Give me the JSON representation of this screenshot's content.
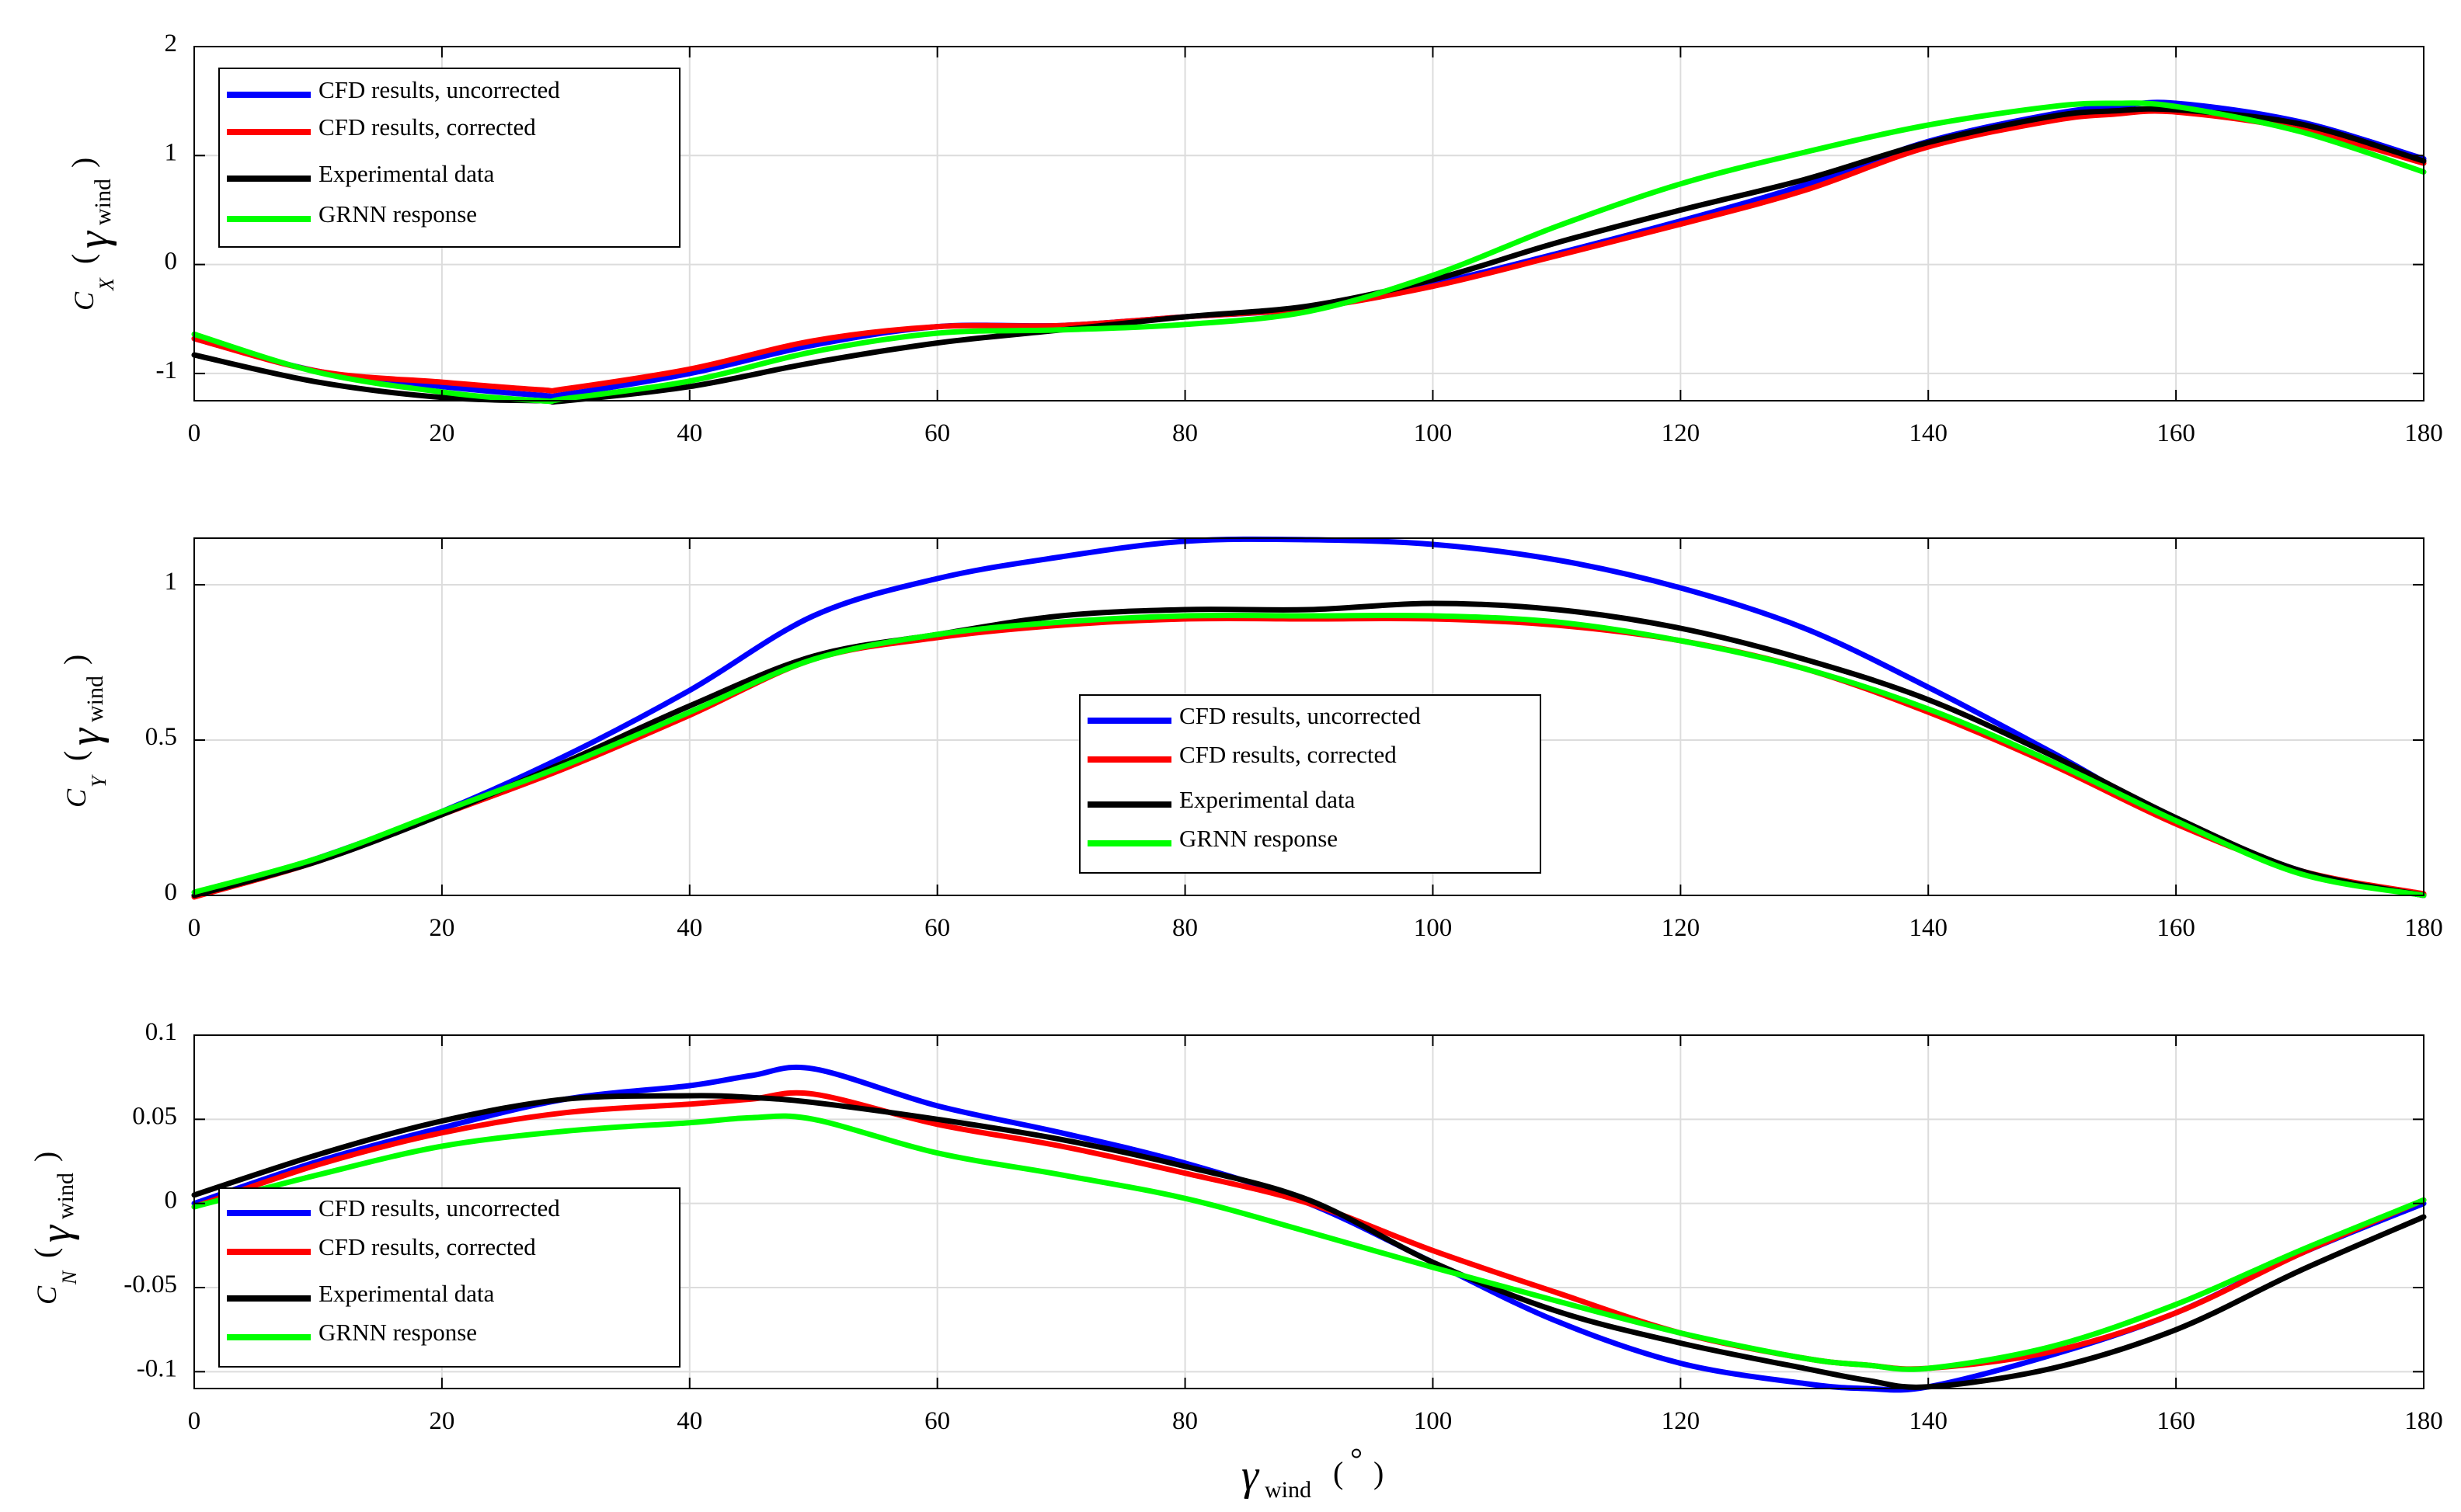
{
  "colors": {
    "uncorrected": "#0000ff",
    "corrected": "#ff0000",
    "experimental": "#000000",
    "grnn": "#00ff00",
    "grid": "#dcdcdc",
    "axis": "#000000"
  },
  "legend_labels": {
    "uncorrected": "CFD results, uncorrected",
    "corrected": "CFD results, corrected",
    "experimental": "Experimental data",
    "grnn": "GRNN response"
  },
  "x_axis": {
    "symbol": "γ",
    "subscript": "wind",
    "unit_open": "(",
    "unit_degree": "°",
    "unit_close": ")"
  },
  "chart_data": [
    {
      "type": "line",
      "ylabel": {
        "symbol": "C",
        "subscript": "X",
        "open": "(",
        "gamma": "γ",
        "gamma_sub": "wind",
        "close": ")"
      },
      "xlim": [
        0,
        180
      ],
      "ylim": [
        -1.25,
        2
      ],
      "xticks": [
        "0",
        "20",
        "40",
        "60",
        "80",
        "100",
        "120",
        "140",
        "160",
        "180"
      ],
      "yticks": [
        {
          "value": -1,
          "label": "-1"
        },
        {
          "value": 0,
          "label": "0"
        },
        {
          "value": 1,
          "label": "1"
        },
        {
          "value": 2,
          "label": "2"
        }
      ],
      "grid": true,
      "legend_position": "top-left",
      "x": [
        0,
        10,
        20,
        28,
        30,
        40,
        50,
        60,
        70,
        80,
        90,
        100,
        110,
        120,
        130,
        140,
        150,
        155,
        160,
        170,
        180
      ],
      "series": [
        {
          "key": "uncorrected",
          "name": "CFD results, uncorrected",
          "values": [
            -0.68,
            -0.98,
            -1.12,
            -1.2,
            -1.19,
            -1.0,
            -0.74,
            -0.57,
            -0.56,
            -0.48,
            -0.4,
            -0.18,
            0.1,
            0.4,
            0.73,
            1.13,
            1.38,
            1.45,
            1.48,
            1.31,
            0.97
          ]
        },
        {
          "key": "corrected",
          "name": "CFD results, corrected",
          "values": [
            -0.68,
            -0.98,
            -1.08,
            -1.15,
            -1.14,
            -0.96,
            -0.7,
            -0.57,
            -0.56,
            -0.48,
            -0.4,
            -0.2,
            0.08,
            0.37,
            0.68,
            1.08,
            1.32,
            1.38,
            1.4,
            1.24,
            0.93
          ]
        },
        {
          "key": "experimental",
          "name": "Experimental data",
          "values": [
            -0.83,
            -1.08,
            -1.22,
            -1.25,
            -1.25,
            -1.12,
            -0.9,
            -0.72,
            -0.6,
            -0.48,
            -0.38,
            -0.14,
            0.2,
            0.5,
            0.78,
            1.12,
            1.36,
            1.41,
            1.42,
            1.29,
            0.95
          ]
        },
        {
          "key": "grnn",
          "name": "GRNN response",
          "values": [
            -0.64,
            -0.99,
            -1.17,
            -1.25,
            -1.23,
            -1.07,
            -0.8,
            -0.63,
            -0.6,
            -0.55,
            -0.43,
            -0.1,
            0.35,
            0.74,
            1.03,
            1.28,
            1.45,
            1.48,
            1.45,
            1.22,
            0.85
          ]
        }
      ]
    },
    {
      "type": "line",
      "ylabel": {
        "symbol": "C",
        "subscript": "Y",
        "open": "(",
        "gamma": "γ",
        "gamma_sub": "wind",
        "close": ")"
      },
      "xlim": [
        0,
        180
      ],
      "ylim": [
        0,
        1.15
      ],
      "xticks": [
        "0",
        "20",
        "40",
        "60",
        "80",
        "100",
        "120",
        "140",
        "160",
        "180"
      ],
      "yticks": [
        {
          "value": 0,
          "label": "0"
        },
        {
          "value": 0.5,
          "label": "0.5"
        },
        {
          "value": 1,
          "label": "1"
        }
      ],
      "grid": true,
      "legend_position": "center",
      "x": [
        0,
        10,
        20,
        30,
        40,
        50,
        60,
        70,
        80,
        90,
        100,
        110,
        120,
        130,
        140,
        150,
        160,
        170,
        180
      ],
      "series": [
        {
          "key": "uncorrected",
          "name": "CFD results, uncorrected",
          "values": [
            0.0,
            0.12,
            0.27,
            0.45,
            0.66,
            0.9,
            1.02,
            1.09,
            1.14,
            1.145,
            1.13,
            1.08,
            0.99,
            0.86,
            0.67,
            0.46,
            0.24,
            0.08,
            0.0
          ]
        },
        {
          "key": "corrected",
          "name": "CFD results, corrected",
          "values": [
            -0.005,
            0.11,
            0.26,
            0.41,
            0.58,
            0.76,
            0.83,
            0.87,
            0.89,
            0.89,
            0.89,
            0.87,
            0.82,
            0.73,
            0.59,
            0.42,
            0.23,
            0.08,
            0.005
          ]
        },
        {
          "key": "experimental",
          "name": "Experimental data",
          "values": [
            0.0,
            0.11,
            0.26,
            0.43,
            0.61,
            0.77,
            0.84,
            0.9,
            0.92,
            0.92,
            0.94,
            0.92,
            0.86,
            0.76,
            0.63,
            0.45,
            0.25,
            0.08,
            0.0
          ]
        },
        {
          "key": "grnn",
          "name": "GRNN response",
          "values": [
            0.01,
            0.12,
            0.27,
            0.42,
            0.59,
            0.76,
            0.84,
            0.88,
            0.9,
            0.9,
            0.9,
            0.88,
            0.82,
            0.73,
            0.6,
            0.43,
            0.24,
            0.07,
            0.0
          ]
        }
      ]
    },
    {
      "type": "line",
      "ylabel": {
        "symbol": "C",
        "subscript": "N",
        "open": "(",
        "gamma": "γ",
        "gamma_sub": "wind",
        "close": ")"
      },
      "xlim": [
        0,
        180
      ],
      "ylim": [
        -0.11,
        0.1
      ],
      "xticks": [
        "0",
        "20",
        "40",
        "60",
        "80",
        "100",
        "120",
        "140",
        "160",
        "180"
      ],
      "yticks": [
        {
          "value": -0.1,
          "label": "-0.1"
        },
        {
          "value": -0.05,
          "label": "-0.05"
        },
        {
          "value": 0,
          "label": "0"
        },
        {
          "value": 0.05,
          "label": "0.05"
        },
        {
          "value": 0.1,
          "label": "0.1"
        }
      ],
      "grid": true,
      "legend_position": "bottom-left",
      "x": [
        0,
        10,
        20,
        30,
        40,
        45,
        50,
        60,
        70,
        80,
        90,
        100,
        110,
        120,
        130,
        135,
        140,
        150,
        160,
        170,
        180
      ],
      "series": [
        {
          "key": "uncorrected",
          "name": "CFD results, uncorrected",
          "values": [
            0.0,
            0.025,
            0.045,
            0.062,
            0.07,
            0.076,
            0.08,
            0.058,
            0.042,
            0.024,
            0.0,
            -0.035,
            -0.07,
            -0.095,
            -0.107,
            -0.11,
            -0.109,
            -0.09,
            -0.065,
            -0.03,
            0.0
          ]
        },
        {
          "key": "corrected",
          "name": "CFD results, corrected",
          "values": [
            -0.002,
            0.023,
            0.042,
            0.054,
            0.059,
            0.062,
            0.065,
            0.047,
            0.034,
            0.018,
            0.0,
            -0.028,
            -0.053,
            -0.077,
            -0.092,
            -0.096,
            -0.098,
            -0.088,
            -0.065,
            -0.03,
            0.002
          ]
        },
        {
          "key": "experimental",
          "name": "Experimental data",
          "values": [
            0.005,
            0.029,
            0.049,
            0.062,
            0.064,
            0.063,
            0.06,
            0.05,
            0.038,
            0.022,
            0.002,
            -0.035,
            -0.064,
            -0.083,
            -0.098,
            -0.105,
            -0.109,
            -0.098,
            -0.075,
            -0.04,
            -0.008
          ]
        },
        {
          "key": "grnn",
          "name": "GRNN response",
          "values": [
            -0.002,
            0.017,
            0.034,
            0.043,
            0.048,
            0.051,
            0.05,
            0.03,
            0.017,
            0.003,
            -0.017,
            -0.038,
            -0.058,
            -0.077,
            -0.092,
            -0.096,
            -0.098,
            -0.085,
            -0.06,
            -0.028,
            0.002
          ]
        }
      ]
    }
  ]
}
